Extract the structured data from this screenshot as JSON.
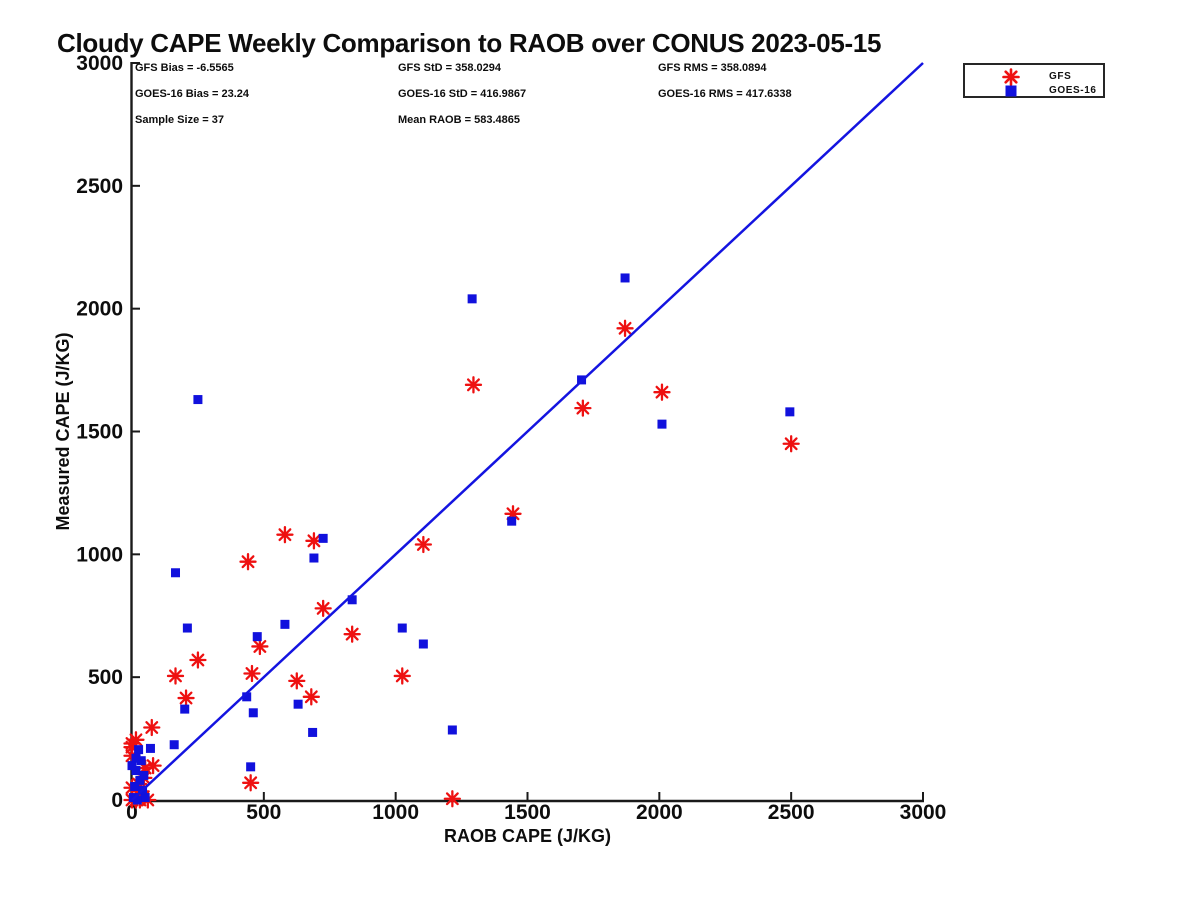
{
  "title": "Cloudy CAPE Weekly Comparison to RAOB over CONUS 2023-05-15",
  "stats": {
    "col1": [
      "GFS Bias = -6.5565",
      "GOES-16 Bias = 23.24",
      "Sample Size = 37"
    ],
    "col2": [
      "GFS StD = 358.0294",
      "GOES-16 StD = 416.9867",
      "Mean RAOB = 583.4865"
    ],
    "col3": [
      "GFS RMS = 358.0894",
      "GOES-16 RMS = 417.6338"
    ]
  },
  "legend": {
    "items": [
      {
        "label": "GFS",
        "marker": "asterisk",
        "color": "#ee1111"
      },
      {
        "label": "GOES-16",
        "marker": "square",
        "color": "#1111dd"
      }
    ]
  },
  "colors": {
    "gfs": "#ee1111",
    "goes16": "#1111dd",
    "reference_line": "#1414e0",
    "axis": "#1a1a1a"
  },
  "chart_data": {
    "type": "scatter",
    "title": "Cloudy CAPE Weekly Comparison to RAOB over CONUS 2023-05-15",
    "xlabel": "RAOB CAPE (J/KG)",
    "ylabel": "Measured CAPE (J/KG)",
    "xlim": [
      0,
      3000
    ],
    "ylim": [
      0,
      3000
    ],
    "xticks": [
      0,
      500,
      1000,
      1500,
      2000,
      2500,
      3000
    ],
    "yticks": [
      0,
      500,
      1000,
      1500,
      2000,
      2500,
      3000
    ],
    "grid": false,
    "legend_position": "top-right-outside",
    "sample_size": 37,
    "reference_line": {
      "name": "1:1 line",
      "from": [
        0,
        0
      ],
      "to": [
        3000,
        3000
      ],
      "color": "#1414e0"
    },
    "series": [
      {
        "name": "GFS",
        "marker": "asterisk",
        "color": "#ee1111",
        "points": [
          [
            440,
            970
          ],
          [
            725,
            780
          ],
          [
            835,
            675
          ],
          [
            1025,
            505
          ],
          [
            250,
            570
          ],
          [
            165,
            505
          ],
          [
            205,
            415
          ],
          [
            455,
            515
          ],
          [
            485,
            625
          ],
          [
            625,
            485
          ],
          [
            680,
            420
          ],
          [
            580,
            1080
          ],
          [
            690,
            1055
          ],
          [
            1105,
            1040
          ],
          [
            1445,
            1165
          ],
          [
            1295,
            1690
          ],
          [
            1710,
            1595
          ],
          [
            1870,
            1920
          ],
          [
            2010,
            1660
          ],
          [
            2500,
            1450
          ],
          [
            450,
            70
          ],
          [
            1215,
            5
          ],
          [
            75,
            295
          ],
          [
            15,
            245
          ],
          [
            0,
            230
          ],
          [
            0,
            180
          ],
          [
            80,
            140
          ],
          [
            50,
            130
          ],
          [
            45,
            90
          ],
          [
            25,
            65
          ],
          [
            0,
            50
          ],
          [
            35,
            35
          ],
          [
            0,
            215
          ],
          [
            15,
            0
          ],
          [
            60,
            0
          ],
          [
            0,
            0
          ],
          [
            30,
            0
          ]
        ]
      },
      {
        "name": "GOES-16",
        "marker": "square",
        "color": "#1111dd",
        "points": [
          [
            165,
            925
          ],
          [
            690,
            985
          ],
          [
            835,
            815
          ],
          [
            210,
            700
          ],
          [
            475,
            665
          ],
          [
            580,
            715
          ],
          [
            1025,
            700
          ],
          [
            435,
            420
          ],
          [
            200,
            370
          ],
          [
            460,
            355
          ],
          [
            630,
            390
          ],
          [
            685,
            275
          ],
          [
            160,
            225
          ],
          [
            450,
            135
          ],
          [
            1215,
            285
          ],
          [
            1105,
            635
          ],
          [
            250,
            1630
          ],
          [
            725,
            1065
          ],
          [
            1290,
            2040
          ],
          [
            1870,
            2125
          ],
          [
            1705,
            1710
          ],
          [
            2010,
            1530
          ],
          [
            2495,
            1580
          ],
          [
            1440,
            1135
          ],
          [
            70,
            210
          ],
          [
            25,
            205
          ],
          [
            35,
            160
          ],
          [
            15,
            170
          ],
          [
            15,
            120
          ],
          [
            30,
            80
          ],
          [
            5,
            10
          ],
          [
            50,
            10
          ],
          [
            0,
            140
          ],
          [
            45,
            100
          ],
          [
            10,
            55
          ],
          [
            40,
            40
          ],
          [
            20,
            0
          ]
        ]
      }
    ]
  }
}
